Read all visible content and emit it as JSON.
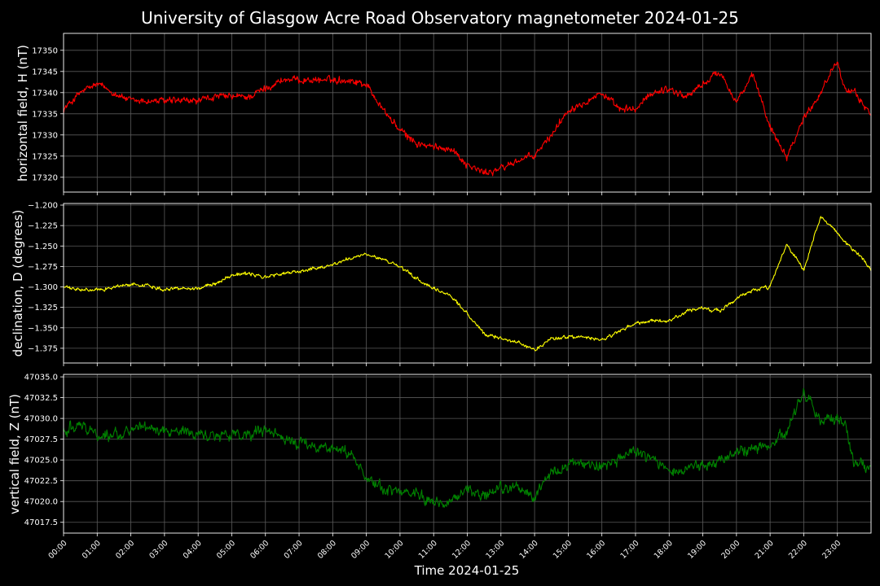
{
  "figure": {
    "title": "University of Glasgow Acre Road Observatory magnetometer 2024-01-25",
    "xlabel": "Time 2024-01-25",
    "background": "#000000",
    "text_color": "#ffffff",
    "grid_color": "#5a5a5a"
  },
  "chart_data": [
    {
      "type": "line",
      "ylabel": "horizontal field, H (nT)",
      "color": "#ff0000",
      "ylim": [
        17316.5,
        17354.0
      ],
      "yticks": [
        17320,
        17325,
        17330,
        17335,
        17340,
        17345,
        17350
      ],
      "yticklabels": [
        "17320",
        "17325",
        "17330",
        "17335",
        "17340",
        "17345",
        "17350"
      ],
      "xlim": [
        0,
        24
      ],
      "xticks": [
        0,
        1,
        2,
        3,
        4,
        5,
        6,
        7,
        8,
        9,
        10,
        11,
        12,
        13,
        14,
        15,
        16,
        17,
        18,
        19,
        20,
        21,
        22,
        23
      ],
      "noise": 0.7,
      "x": [
        0,
        0.5,
        1,
        1.5,
        2,
        2.5,
        3,
        3.5,
        4,
        4.5,
        5,
        5.5,
        6,
        6.5,
        7,
        7.5,
        8,
        8.5,
        9,
        9.5,
        10,
        10.5,
        11,
        11.5,
        12,
        12.5,
        13,
        13.5,
        14,
        14.5,
        15,
        15.5,
        16,
        16.5,
        17,
        17.5,
        18,
        18.5,
        19,
        19.5,
        20,
        20.5,
        21,
        21.5,
        22,
        22.5,
        23,
        23.25,
        23.5,
        24
      ],
      "y": [
        17336,
        17340,
        17342,
        17340,
        17338,
        17338,
        17338,
        17338,
        17338,
        17339,
        17339,
        17339,
        17341,
        17343,
        17343,
        17343,
        17343,
        17343,
        17342,
        17336,
        17331,
        17328,
        17327,
        17327,
        17323,
        17321,
        17322,
        17324,
        17325,
        17330,
        17336,
        17338,
        17340,
        17336,
        17336,
        17340,
        17341,
        17339,
        17342,
        17345,
        17338,
        17344,
        17332,
        17325,
        17334,
        17340,
        17348,
        17340,
        17340,
        17335
      ],
      "xticklabels": []
    },
    {
      "type": "line",
      "ylabel": "declination, D (degrees)",
      "color": "#ffff00",
      "ylim": [
        -1.393,
        -1.198
      ],
      "yticks": [
        -1.375,
        -1.35,
        -1.325,
        -1.3,
        -1.275,
        -1.25,
        -1.225,
        -1.2
      ],
      "yticklabels": [
        "−1.375",
        "−1.350",
        "−1.325",
        "−1.300",
        "−1.275",
        "−1.250",
        "−1.225",
        "−1.200"
      ],
      "xlim": [
        0,
        24
      ],
      "xticks": [
        0,
        1,
        2,
        3,
        4,
        5,
        6,
        7,
        8,
        9,
        10,
        11,
        12,
        13,
        14,
        15,
        16,
        17,
        18,
        19,
        20,
        21,
        22,
        23
      ],
      "noise": 0.0018,
      "x": [
        0,
        0.5,
        1,
        1.5,
        2,
        2.5,
        3,
        3.5,
        4,
        4.5,
        5,
        5.5,
        6,
        6.5,
        7,
        7.5,
        8,
        8.5,
        9,
        9.5,
        10,
        10.5,
        11,
        11.5,
        12,
        12.5,
        13,
        13.5,
        14,
        14.5,
        15,
        15.5,
        16,
        16.5,
        17,
        17.5,
        18,
        18.5,
        19,
        19.5,
        20,
        20.5,
        21,
        21.5,
        22,
        22.5,
        23,
        23.25,
        23.5,
        24
      ],
      "y": [
        -1.3,
        -1.304,
        -1.304,
        -1.3,
        -1.297,
        -1.298,
        -1.303,
        -1.301,
        -1.302,
        -1.296,
        -1.285,
        -1.284,
        -1.288,
        -1.284,
        -1.281,
        -1.277,
        -1.273,
        -1.265,
        -1.261,
        -1.266,
        -1.276,
        -1.29,
        -1.303,
        -1.31,
        -1.333,
        -1.358,
        -1.362,
        -1.368,
        -1.377,
        -1.363,
        -1.361,
        -1.362,
        -1.365,
        -1.355,
        -1.345,
        -1.342,
        -1.342,
        -1.33,
        -1.326,
        -1.33,
        -1.314,
        -1.304,
        -1.3,
        -1.248,
        -1.28,
        -1.215,
        -1.233,
        -1.247,
        -1.255,
        -1.278
      ],
      "xticklabels": []
    },
    {
      "type": "line",
      "ylabel": "vertical field, Z (nT)",
      "color": "#008000",
      "ylim": [
        47016.2,
        47035.3
      ],
      "yticks": [
        47017.5,
        47020.0,
        47022.5,
        47025.0,
        47027.5,
        47030.0,
        47032.5,
        47035.0
      ],
      "yticklabels": [
        "47017.5",
        "47020.0",
        "47022.5",
        "47025.0",
        "47027.5",
        "47030.0",
        "47032.5",
        "47035.0"
      ],
      "xlim": [
        0,
        24
      ],
      "xticks": [
        0,
        1,
        2,
        3,
        4,
        5,
        6,
        7,
        8,
        9,
        10,
        11,
        12,
        13,
        14,
        15,
        16,
        17,
        18,
        19,
        20,
        21,
        22,
        23
      ],
      "noise": 0.55,
      "x": [
        0,
        0.5,
        1,
        1.5,
        2,
        2.5,
        3,
        3.5,
        4,
        4.5,
        5,
        5.5,
        6,
        6.5,
        7,
        7.5,
        8,
        8.5,
        9,
        9.5,
        10,
        10.5,
        11,
        11.5,
        12,
        12.5,
        13,
        13.5,
        14,
        14.5,
        15,
        15.5,
        16,
        16.5,
        17,
        17.5,
        18,
        18.5,
        19,
        19.5,
        20,
        20.5,
        21,
        21.5,
        22,
        22.5,
        23,
        23.25,
        23.5,
        24
      ],
      "y": [
        47028.5,
        47029.5,
        47028,
        47028,
        47028.5,
        47029,
        47028.5,
        47028.5,
        47028,
        47028,
        47028,
        47028,
        47028.5,
        47027.5,
        47027,
        47026.5,
        47026.5,
        47026,
        47023,
        47021.5,
        47021,
        47021,
        47020,
        47020,
        47021.5,
        47020.5,
        47021.5,
        47021.5,
        47020.5,
        47023.5,
        47024.5,
        47024.5,
        47024.5,
        47025,
        47026,
        47025,
        47024,
        47024,
        47024.5,
        47024.5,
        47026,
        47026.5,
        47026.5,
        47028.5,
        47033.5,
        47029.5,
        47030,
        47029,
        47024.5,
        47024
      ],
      "xticklabels": [
        "00:00",
        "01:00",
        "02:00",
        "03:00",
        "04:00",
        "05:00",
        "06:00",
        "07:00",
        "08:00",
        "09:00",
        "10:00",
        "11:00",
        "12:00",
        "13:00",
        "14:00",
        "15:00",
        "16:00",
        "17:00",
        "18:00",
        "19:00",
        "20:00",
        "21:00",
        "22:00",
        "23:00"
      ]
    }
  ]
}
